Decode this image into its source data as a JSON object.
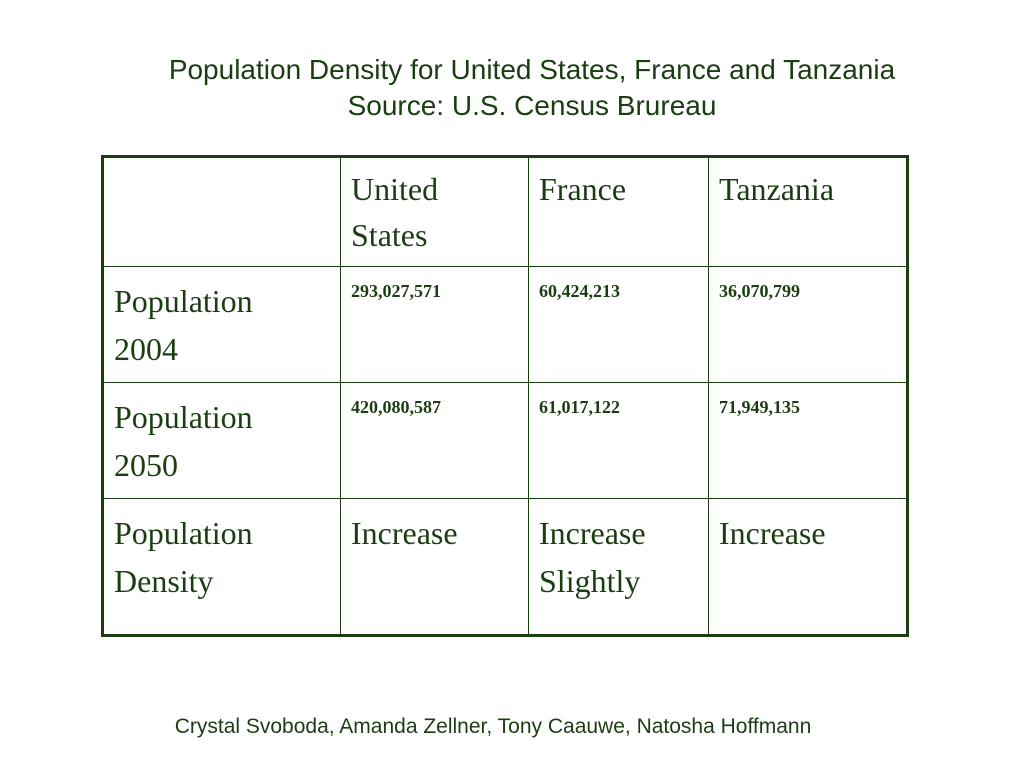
{
  "slide": {
    "title_line1": "Population Density for United States, France and Tanzania",
    "title_line2": "Source: U.S. Census Brureau",
    "footer": "Crystal Svoboda, Amanda Zellner, Tony Caauwe, Natosha Hoffmann"
  },
  "table": {
    "header": {
      "col1": [
        "United",
        "States"
      ],
      "col2": "France",
      "col3": "Tanzania"
    },
    "rows": [
      {
        "label": [
          "Population",
          "2004"
        ],
        "values": [
          "293,027,571",
          "60,424,213",
          "36,070,799"
        ]
      },
      {
        "label": [
          "Population",
          "2050"
        ],
        "values": [
          "420,080,587",
          "61,017,122",
          "71,949,135"
        ]
      },
      {
        "label": [
          "Population",
          "Density"
        ],
        "values": [
          [
            "Increase"
          ],
          [
            "Increase",
            "Slightly"
          ],
          [
            "Increase"
          ]
        ]
      }
    ]
  }
}
